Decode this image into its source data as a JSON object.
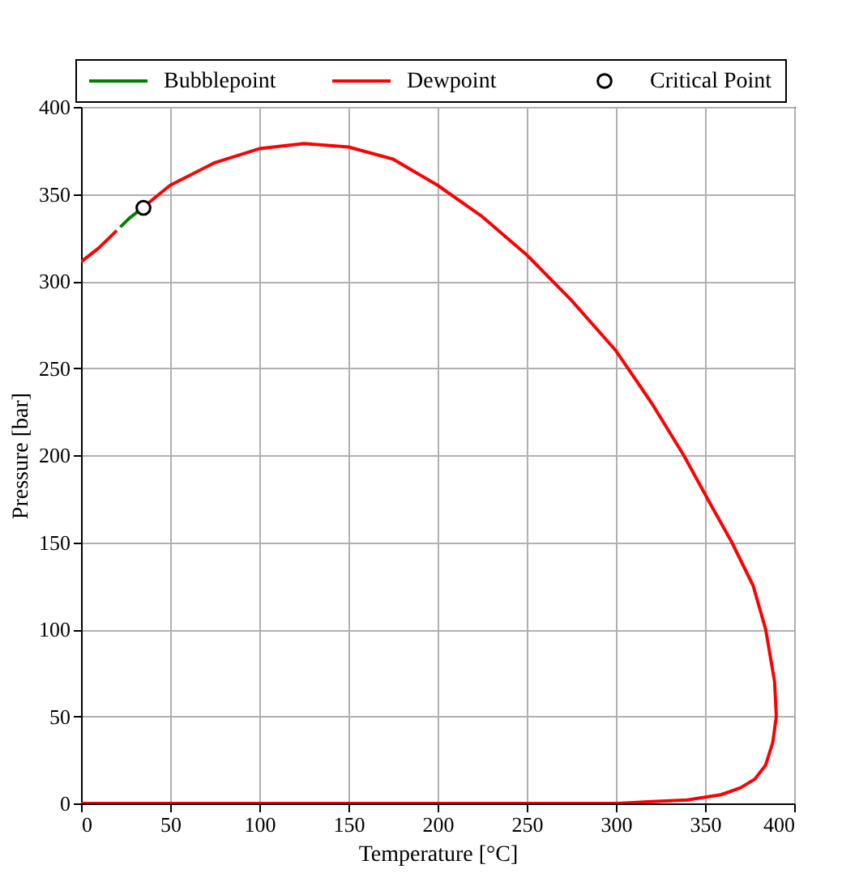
{
  "chart_data": {
    "type": "line",
    "xlabel": "Temperature [°C]",
    "ylabel": "Pressure [bar]",
    "xlim": [
      0,
      400
    ],
    "ylim": [
      0,
      400
    ],
    "xticks": [
      0,
      50,
      100,
      150,
      200,
      250,
      300,
      350,
      400
    ],
    "yticks": [
      0,
      50,
      100,
      150,
      200,
      250,
      300,
      350,
      400
    ],
    "grid": true,
    "legend": "top",
    "series": [
      {
        "name": "Bubblepoint",
        "color": "#008000",
        "x": [
          22,
          27,
          32
        ],
        "values": [
          331,
          336,
          340
        ]
      },
      {
        "name": "Dewpoint",
        "color": "#ff0000",
        "x": [
          0,
          10,
          20,
          29,
          38,
          50,
          75,
          100,
          125,
          150,
          175,
          200,
          225,
          250,
          275,
          300,
          320,
          338,
          353,
          365,
          377,
          384,
          389,
          390,
          388,
          384,
          378,
          370,
          359,
          340,
          320,
          300,
          250,
          200,
          150,
          100,
          50,
          0
        ],
        "values": [
          311,
          319,
          329,
          null,
          345,
          355,
          368,
          376,
          379,
          377,
          370,
          355,
          337,
          315,
          289,
          260,
          230,
          200,
          172,
          150,
          125,
          100,
          70,
          50,
          35,
          22,
          14,
          9,
          5,
          2,
          1,
          0,
          0,
          0,
          0,
          0,
          0,
          0
        ]
      },
      {
        "name": "Critical Point",
        "color": "#000000",
        "type": "scatter",
        "marker": "circle",
        "x": [
          35
        ],
        "values": [
          342
        ]
      }
    ]
  }
}
